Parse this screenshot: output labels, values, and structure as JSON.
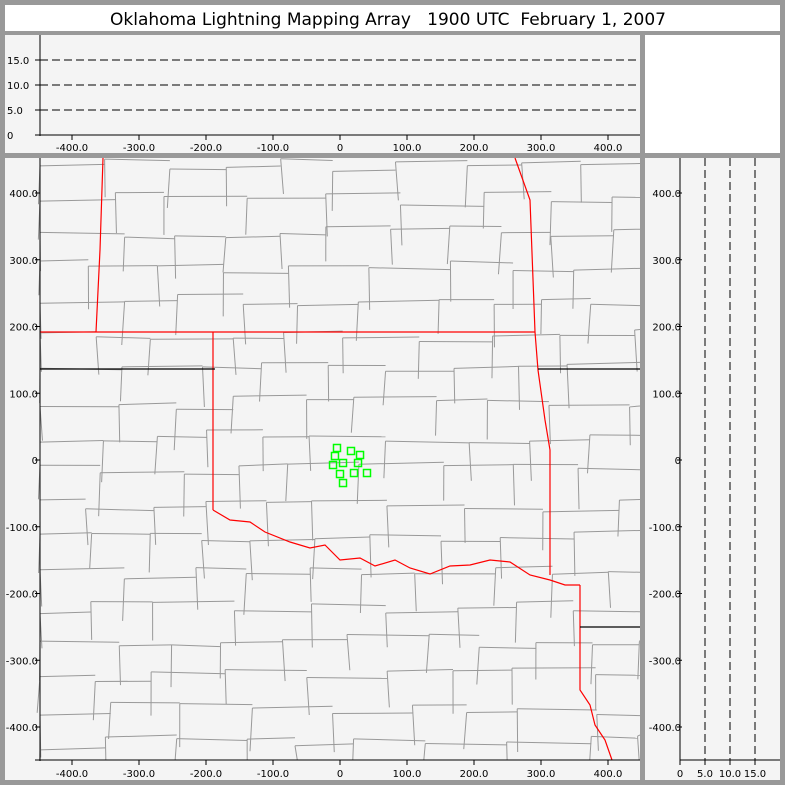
{
  "title": "Oklahoma Lightning Mapping Array   1900 UTC  February 1, 2007",
  "colors": {
    "background": "#999999",
    "panel": "#f4f4f4",
    "state_border": "#ff0000",
    "county_border": "#999999",
    "source_marker": "#00ff00"
  },
  "chart_data": [
    {
      "type": "line",
      "panel": "altitude-vs-east-west",
      "xlim": [
        -450,
        445
      ],
      "ylim": [
        0,
        20
      ],
      "x_ticks": [
        "-400.0",
        "-300.0",
        "-200.0",
        "-100.0",
        "0",
        "100.0",
        "200.0",
        "300.0",
        "400.0"
      ],
      "x_tick_values": [
        -400,
        -300,
        -200,
        -100,
        0,
        100,
        200,
        300,
        400
      ],
      "y_ticks": [
        "0",
        "5.0",
        "10.0",
        "15.0"
      ],
      "y_tick_values": [
        0,
        5,
        10,
        15
      ],
      "dashed_reference_lines": [
        5,
        10,
        15
      ]
    },
    {
      "type": "scatter",
      "panel": "plan-view-map",
      "xlim": [
        -450,
        445
      ],
      "ylim": [
        -450,
        450
      ],
      "x_ticks": [
        "-400.0",
        "-300.0",
        "-200.0",
        "-100.0",
        "0",
        "100.0",
        "200.0",
        "300.0",
        "400.0"
      ],
      "x_tick_values": [
        -400,
        -300,
        -200,
        -100,
        0,
        100,
        200,
        300,
        400
      ],
      "y_ticks": [
        "400.0",
        "300.0",
        "200.0",
        "100.0",
        "0",
        "-100.0",
        "-200.0",
        "-300.0",
        "-400.0"
      ],
      "y_tick_values": [
        400,
        300,
        200,
        100,
        0,
        -100,
        -200,
        -300,
        -400
      ],
      "marker": "square",
      "points": [
        {
          "x": -4.5,
          "y": 18
        },
        {
          "x": 16.4,
          "y": 13.5
        },
        {
          "x": 29.9,
          "y": 7.5
        },
        {
          "x": -7.5,
          "y": 6
        },
        {
          "x": 4.5,
          "y": -4.5
        },
        {
          "x": 26.9,
          "y": -4.5
        },
        {
          "x": -10.4,
          "y": -7.5
        },
        {
          "x": 0,
          "y": -21
        },
        {
          "x": 20.9,
          "y": -19.5
        },
        {
          "x": 40.3,
          "y": -19.5
        },
        {
          "x": 4.5,
          "y": -34.5
        }
      ]
    },
    {
      "type": "line",
      "panel": "north-south-vs-altitude",
      "xlim": [
        0,
        20
      ],
      "ylim": [
        -450,
        450
      ],
      "x_ticks": [
        "0",
        "5.0",
        "10.0",
        "15.0"
      ],
      "x_tick_values": [
        0,
        5,
        10,
        15
      ],
      "y_ticks": [
        "400.0",
        "300.0",
        "200.0",
        "100.0",
        "0",
        "-100.0",
        "-200.0",
        "-300.0",
        "-400.0"
      ],
      "y_tick_values": [
        400,
        300,
        200,
        100,
        0,
        -100,
        -200,
        -300,
        -400
      ],
      "dashed_reference_lines": [
        5,
        10,
        15
      ]
    }
  ]
}
